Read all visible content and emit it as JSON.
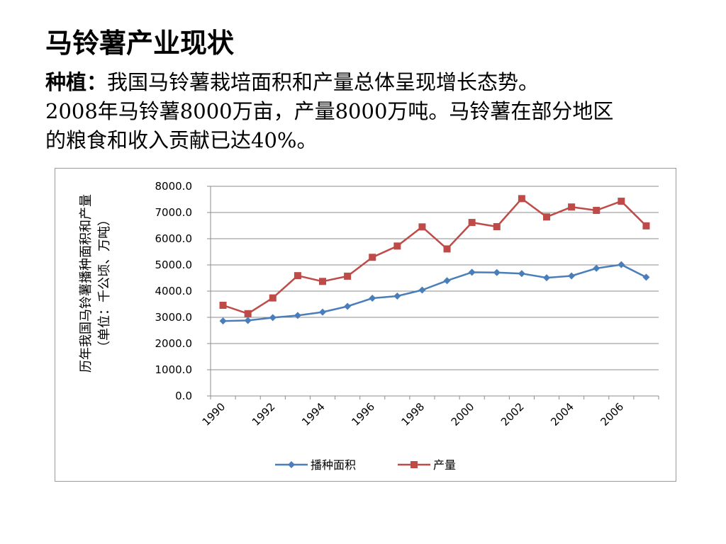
{
  "slide": {
    "title": "马铃薯产业现状",
    "lead": "种植：",
    "line1_rest": "我国马铃薯栽培面积和产量总体呈现增长态势。",
    "line2": "2008年马铃薯8000万亩，产量8000万吨。马铃薯在部分地区",
    "line3": "的粮食和收入贡献已达40%。"
  },
  "chart_data": {
    "type": "line",
    "ylabel_line1": "历年我国马铃薯播种面积和产量",
    "ylabel_line2": "（单位：千公顷、万吨）",
    "x": [
      1990,
      1991,
      1992,
      1993,
      1994,
      1995,
      1996,
      1997,
      1998,
      1999,
      2000,
      2001,
      2002,
      2003,
      2004,
      2005,
      2006,
      2007
    ],
    "x_tick_labels": [
      "1990",
      "1992",
      "1994",
      "1996",
      "1998",
      "2000",
      "2002",
      "2004",
      "2006"
    ],
    "y_tick_labels": [
      "0.0",
      "1000.0",
      "2000.0",
      "3000.0",
      "4000.0",
      "5000.0",
      "6000.0",
      "7000.0",
      "8000.0"
    ],
    "ylim": [
      0,
      8000
    ],
    "grid": true,
    "legend_position": "bottom",
    "series": [
      {
        "name": "播种面积",
        "color": "#4a7ebb",
        "marker": "diamond",
        "values": [
          2860,
          2880,
          2990,
          3070,
          3200,
          3420,
          3730,
          3810,
          4040,
          4400,
          4720,
          4710,
          4670,
          4510,
          4580,
          4870,
          5010,
          4530
        ]
      },
      {
        "name": "产量",
        "color": "#be4b48",
        "marker": "square",
        "values": [
          3460,
          3140,
          3740,
          4590,
          4370,
          4570,
          5290,
          5720,
          6450,
          5610,
          6620,
          6460,
          7530,
          6830,
          7210,
          7080,
          7430,
          6490
        ]
      }
    ]
  }
}
